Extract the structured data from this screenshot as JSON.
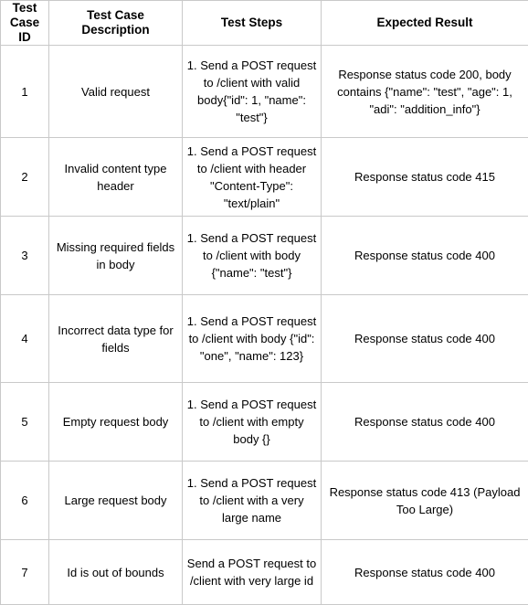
{
  "table": {
    "headers": {
      "id": "Test Case ID",
      "description": "Test Case Description",
      "steps": "Test Steps",
      "expected": "Expected Result"
    },
    "rows": [
      {
        "id": "1",
        "description": "Valid request",
        "steps": "1. Send a POST request to /client with valid body{\"id\": 1, \"name\": \"test\"}",
        "expected": "Response status code 200, body contains {\"name\": \"test\", \"age\": 1, \"adi\": \"addition_info\"}"
      },
      {
        "id": "2",
        "description": "Invalid content type header",
        "steps": "1. Send a POST request to /client with header \"Content-Type\": \"text/plain\"",
        "expected": "Response status code 415"
      },
      {
        "id": "3",
        "description": "Missing required fields in body",
        "steps": "1. Send a POST request to /client with body {\"name\": \"test\"}",
        "expected": "Response status code 400"
      },
      {
        "id": "4",
        "description": "Incorrect data type for fields",
        "steps": "1. Send a POST request to /client with body {\"id\": \"one\", \"name\": 123}",
        "expected": "Response status code 400"
      },
      {
        "id": "5",
        "description": "Empty request body",
        "steps": "1. Send a POST request to /client with empty body {}",
        "expected": "Response status code 400"
      },
      {
        "id": "6",
        "description": "Large request body",
        "steps": "1. Send a POST request to /client with a very large name",
        "expected": "Response status code 413 (Payload Too Large)"
      },
      {
        "id": "7",
        "description": "Id is out of bounds",
        "steps": "Send a POST request to /client with very large id",
        "expected": "Response status code 400"
      }
    ]
  }
}
